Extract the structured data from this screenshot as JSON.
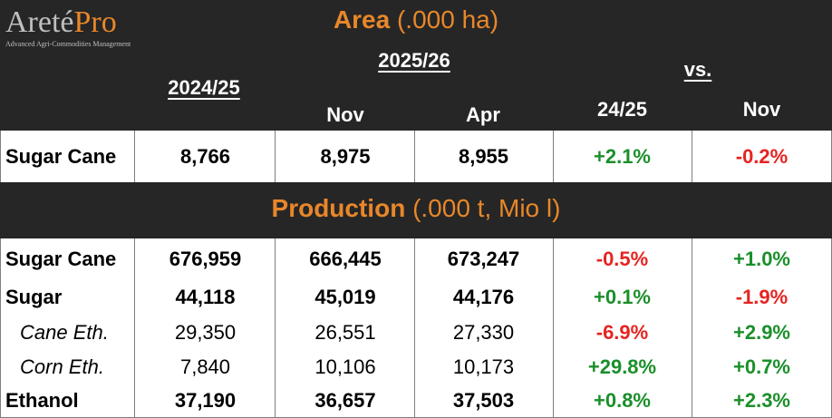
{
  "logo": {
    "name_a": "Areté",
    "name_b": "Pro",
    "tagline": "Advanced Agri-Commodities Management"
  },
  "colors": {
    "accent": "#e8872a",
    "band": "#262626",
    "positive": "#1a8f2a",
    "negative": "#e52421"
  },
  "area": {
    "title_bold": "Area",
    "title_rest": " (.000 ha)"
  },
  "headers": {
    "y2425": "2024/25",
    "y2526": "2025/26",
    "nov": "Nov",
    "apr": "Apr",
    "vs": "vs.",
    "vs2425": "24/25",
    "vsnov": "Nov"
  },
  "area_rows": [
    {
      "label": "Sugar Cane",
      "v2425": "8,766",
      "nov": "8,975",
      "apr": "8,955",
      "vs2425": "+2.1%",
      "vsnov": "-0.2%"
    }
  ],
  "production": {
    "title_bold": "Production",
    "title_rest": " (.000 t, Mio l)"
  },
  "prod_rows": [
    {
      "label": "Sugar Cane",
      "v2425": "676,959",
      "nov": "666,445",
      "apr": "673,247",
      "vs2425": "-0.5%",
      "vsnov": "+1.0%"
    },
    {
      "label": "Sugar",
      "v2425": "44,118",
      "nov": "45,019",
      "apr": "44,176",
      "vs2425": "+0.1%",
      "vsnov": "-1.9%"
    },
    {
      "label": "Cane Eth.",
      "v2425": "29,350",
      "nov": "26,551",
      "apr": "27,330",
      "vs2425": "-6.9%",
      "vsnov": "+2.9%"
    },
    {
      "label": "Corn Eth.",
      "v2425": "7,840",
      "nov": "10,106",
      "apr": "10,173",
      "vs2425": "+29.8%",
      "vsnov": "+0.7%"
    },
    {
      "label": "Ethanol",
      "v2425": "37,190",
      "nov": "36,657",
      "apr": "37,503",
      "vs2425": "+0.8%",
      "vsnov": "+2.3%"
    }
  ]
}
